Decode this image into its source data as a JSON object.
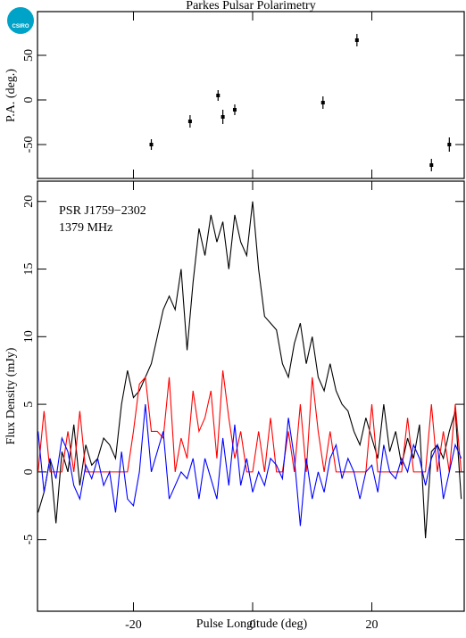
{
  "logo": "CSIRO",
  "chart_data": [
    {
      "type": "scatter",
      "title": "Parkes Pulsar Polarimetry",
      "y_label": "P.A. (deg.)",
      "x": [
        -17,
        -10.5,
        -5.8,
        -5,
        -3,
        11.8,
        17.5,
        30,
        33
      ],
      "values": [
        -50,
        -24,
        5,
        -19,
        -11,
        -3,
        67,
        -73,
        -50
      ],
      "errors": [
        6,
        7,
        6,
        8,
        6,
        7,
        7,
        7,
        8
      ],
      "color": "#000000",
      "xlim": [
        -36.1,
        35.5
      ],
      "xticks": [
        -20,
        0,
        20
      ],
      "ylim": [
        -88,
        99
      ],
      "yticks": [
        -50,
        0,
        50
      ]
    },
    {
      "type": "line",
      "x_label": "Pulse Longitude (deg)",
      "y_label": "Flux Density (mJy)",
      "annotations": [
        "PSR J1759−2302",
        "1379 MHz"
      ],
      "x": [
        -36,
        -35,
        -34,
        -33,
        -32,
        -31,
        -30,
        -29,
        -28,
        -27,
        -26,
        -25,
        -24,
        -23,
        -22,
        -21,
        -20,
        -19,
        -18,
        -17,
        -16,
        -15,
        -14,
        -13,
        -12,
        -11,
        -10,
        -9,
        -8,
        -7,
        -6,
        -5,
        -4,
        -3,
        -2,
        -1,
        0,
        1,
        2,
        3,
        4,
        5,
        6,
        7,
        8,
        9,
        10,
        11,
        12,
        13,
        14,
        15,
        16,
        17,
        18,
        19,
        20,
        21,
        22,
        23,
        24,
        25,
        26,
        27,
        28,
        29,
        30,
        31,
        32,
        33,
        34,
        35
      ],
      "series": [
        {
          "color": "#000000",
          "values": [
            -3,
            -1.5,
            1,
            -3.8,
            1.5,
            0,
            3.5,
            -1,
            2,
            0.5,
            1,
            2.5,
            2,
            1,
            5,
            7.5,
            5.5,
            6,
            7,
            8,
            10,
            12,
            13,
            12,
            15,
            9,
            14,
            18,
            16,
            19,
            17,
            18.5,
            15,
            19,
            17,
            16,
            20,
            15,
            11.5,
            11,
            10.5,
            8,
            7,
            9.5,
            11,
            8,
            10,
            7,
            6,
            8,
            6,
            5,
            4.5,
            3,
            2,
            4,
            2.5,
            1,
            5,
            1.5,
            3,
            0.5,
            2.5,
            1,
            3.5,
            -4.9,
            1.5,
            2,
            1,
            3,
            4.5,
            -2
          ]
        },
        {
          "color": "#ff0000",
          "values": [
            0,
            4.5,
            0,
            0,
            0,
            3,
            0,
            4.5,
            0,
            0,
            0,
            0,
            0,
            0,
            0,
            0,
            3,
            6.5,
            7,
            3,
            3,
            2.5,
            7,
            0,
            2.5,
            1,
            6,
            3,
            4,
            6,
            1,
            7.5,
            4,
            1,
            3,
            0,
            0,
            3,
            0,
            4,
            0,
            0,
            3,
            0,
            5,
            0,
            7,
            3,
            0,
            3,
            0,
            0,
            0,
            0,
            0,
            0,
            5,
            0,
            0,
            0,
            0,
            0,
            4,
            0,
            0,
            0,
            5,
            0,
            3,
            0,
            5,
            0
          ]
        },
        {
          "color": "#0000ff",
          "values": [
            3,
            -1.5,
            1,
            -0.5,
            2.5,
            1.5,
            -1,
            -2,
            0.5,
            -0.5,
            1,
            -1,
            0,
            -3,
            1.5,
            -2,
            -2.5,
            0,
            5,
            0,
            1.5,
            3,
            -2,
            -1,
            0,
            -0.5,
            1,
            -2,
            1,
            -0.5,
            -2,
            2.5,
            -1,
            3.5,
            -1,
            1,
            -1.5,
            0,
            -1,
            1,
            0.5,
            -0.5,
            4,
            1,
            -4,
            1,
            -2,
            0,
            -1.5,
            1,
            2,
            -0.5,
            1,
            0,
            -2,
            0,
            0.5,
            -1.5,
            2,
            0,
            -0.5,
            1,
            0,
            2,
            1,
            -1,
            1,
            2,
            -2,
            0,
            2,
            1
          ]
        }
      ],
      "xlim": [
        -36.1,
        35.5
      ],
      "xticks": [
        -20,
        0,
        20
      ],
      "ylim": [
        -10.3,
        21.5
      ],
      "yticks": [
        -5,
        0,
        5,
        10,
        15,
        20
      ]
    }
  ]
}
